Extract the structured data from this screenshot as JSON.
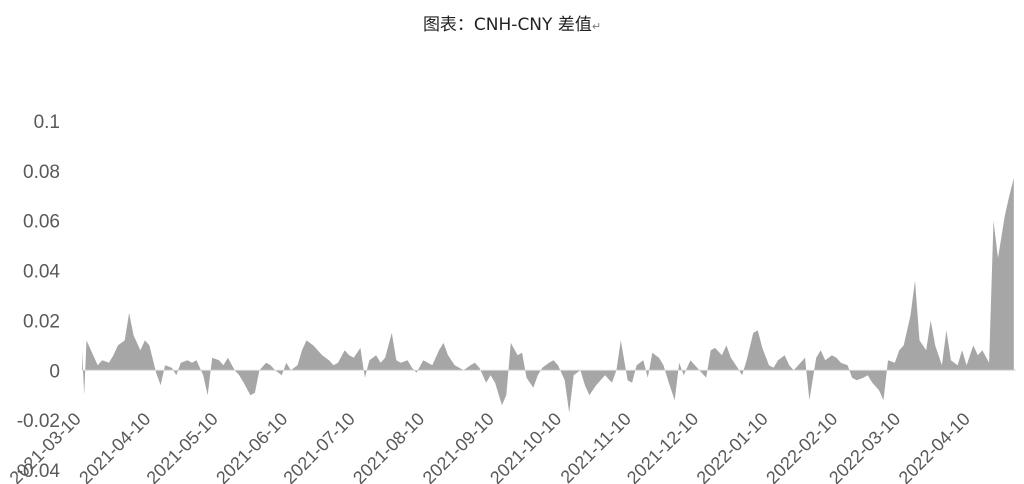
{
  "chart_data": {
    "type": "area",
    "title": "图表：CNH-CNY 差值",
    "title_mark": "↵",
    "xlabel": "",
    "ylabel": "",
    "ylim": [
      -0.04,
      0.1
    ],
    "y_ticks": [
      "0.1",
      "0.08",
      "0.06",
      "0.04",
      "0.02",
      "0",
      "-0.02",
      "-0.04"
    ],
    "x_range": [
      "2021-03-10",
      "2022-04-30"
    ],
    "x_ticks": [
      "2021-03-10",
      "2021-04-10",
      "2021-05-10",
      "2021-06-10",
      "2021-07-10",
      "2021-08-10",
      "2021-09-10",
      "2021-10-10",
      "2021-11-10",
      "2021-12-10",
      "2022-01-10",
      "2022-02-10",
      "2022-03-10",
      "2022-04-10"
    ],
    "grid": false,
    "legend": "none",
    "fill_color": "#A6A6A6",
    "series": [
      {
        "x": [
          "2021-03-10",
          "2021-03-11",
          "2021-03-12",
          "2021-03-15",
          "2021-03-17",
          "2021-03-19",
          "2021-03-22",
          "2021-03-24",
          "2021-03-26",
          "2021-03-29",
          "2021-03-31",
          "2021-04-02",
          "2021-04-05",
          "2021-04-07",
          "2021-04-09",
          "2021-04-12",
          "2021-04-14",
          "2021-04-16",
          "2021-04-19",
          "2021-04-21",
          "2021-04-23",
          "2021-04-26",
          "2021-04-28",
          "2021-04-30",
          "2021-05-03",
          "2021-05-05",
          "2021-05-07",
          "2021-05-10",
          "2021-05-12",
          "2021-05-14",
          "2021-05-17",
          "2021-05-19",
          "2021-05-21",
          "2021-05-24",
          "2021-05-26",
          "2021-05-28",
          "2021-05-31",
          "2021-06-02",
          "2021-06-04",
          "2021-06-07",
          "2021-06-09",
          "2021-06-11",
          "2021-06-14",
          "2021-06-16",
          "2021-06-18",
          "2021-06-21",
          "2021-06-23",
          "2021-06-25",
          "2021-06-28",
          "2021-06-30",
          "2021-07-02",
          "2021-07-05",
          "2021-07-07",
          "2021-07-09",
          "2021-07-12",
          "2021-07-14",
          "2021-07-16",
          "2021-07-19",
          "2021-07-21",
          "2021-07-23",
          "2021-07-26",
          "2021-07-28",
          "2021-07-30",
          "2021-08-02",
          "2021-08-04",
          "2021-08-06",
          "2021-08-09",
          "2021-08-11",
          "2021-08-13",
          "2021-08-16",
          "2021-08-18",
          "2021-08-20",
          "2021-08-23",
          "2021-08-25",
          "2021-08-27",
          "2021-08-30",
          "2021-09-01",
          "2021-09-03",
          "2021-09-06",
          "2021-09-08",
          "2021-09-10",
          "2021-09-13",
          "2021-09-15",
          "2021-09-17",
          "2021-09-20",
          "2021-09-22",
          "2021-09-24",
          "2021-09-27",
          "2021-09-29",
          "2021-10-01",
          "2021-10-04",
          "2021-10-06",
          "2021-10-08",
          "2021-10-11",
          "2021-10-13",
          "2021-10-15",
          "2021-10-18",
          "2021-10-20",
          "2021-10-22",
          "2021-10-25",
          "2021-10-27",
          "2021-10-29",
          "2021-11-01",
          "2021-11-03",
          "2021-11-05",
          "2021-11-08",
          "2021-11-10",
          "2021-11-12",
          "2021-11-15",
          "2021-11-17",
          "2021-11-19",
          "2021-11-22",
          "2021-11-24",
          "2021-11-26",
          "2021-11-29",
          "2021-12-01",
          "2021-12-03",
          "2021-12-06",
          "2021-12-08",
          "2021-12-10",
          "2021-12-13",
          "2021-12-15",
          "2021-12-17",
          "2021-12-20",
          "2021-12-22",
          "2021-12-24",
          "2021-12-27",
          "2021-12-29",
          "2021-12-31",
          "2022-01-03",
          "2022-01-05",
          "2022-01-07",
          "2022-01-10",
          "2022-01-12",
          "2022-01-14",
          "2022-01-17",
          "2022-01-19",
          "2022-01-21",
          "2022-01-24",
          "2022-01-26",
          "2022-01-28",
          "2022-01-31",
          "2022-02-02",
          "2022-02-04",
          "2022-02-07",
          "2022-02-09",
          "2022-02-11",
          "2022-02-14",
          "2022-02-16",
          "2022-02-18",
          "2022-02-21",
          "2022-02-23",
          "2022-02-25",
          "2022-02-28",
          "2022-03-02",
          "2022-03-04",
          "2022-03-07",
          "2022-03-09",
          "2022-03-11",
          "2022-03-14",
          "2022-03-16",
          "2022-03-18",
          "2022-03-21",
          "2022-03-23",
          "2022-03-25",
          "2022-03-28",
          "2022-03-30",
          "2022-04-01",
          "2022-04-04",
          "2022-04-06",
          "2022-04-08",
          "2022-04-11",
          "2022-04-13",
          "2022-04-15",
          "2022-04-18",
          "2022-04-20",
          "2022-04-22",
          "2022-04-25",
          "2022-04-27",
          "2022-04-29"
        ],
        "values": [
          0.008,
          -0.01,
          0.012,
          0.006,
          0.002,
          0.004,
          0.003,
          0.006,
          0.01,
          0.012,
          0.023,
          0.014,
          0.008,
          0.012,
          0.01,
          -0.001,
          -0.006,
          0.002,
          0.001,
          -0.002,
          0.003,
          0.004,
          0.003,
          0.004,
          -0.002,
          -0.01,
          0.005,
          0.004,
          0.002,
          0.005,
          0,
          -0.002,
          -0.005,
          -0.01,
          -0.009,
          0,
          0.003,
          0.002,
          0,
          -0.002,
          0.003,
          0,
          0.002,
          0.008,
          0.012,
          0.01,
          0.008,
          0.006,
          0.004,
          0.002,
          0.003,
          0.008,
          0.006,
          0.005,
          0.009,
          -0.003,
          0.004,
          0.006,
          0.003,
          0.005,
          0.015,
          0.004,
          0.003,
          0.004,
          0.001,
          -0.001,
          0.004,
          0.003,
          0.002,
          0.008,
          0.011,
          0.006,
          0.002,
          0.001,
          0,
          0.002,
          0.003,
          0.001,
          -0.005,
          -0.002,
          -0.005,
          -0.014,
          -0.01,
          0.011,
          0.006,
          0.007,
          -0.003,
          -0.007,
          -0.002,
          0.001,
          0.003,
          0.004,
          0.002,
          -0.004,
          -0.017,
          -0.002,
          0,
          -0.006,
          -0.01,
          -0.006,
          -0.004,
          -0.002,
          -0.005,
          0,
          0.012,
          -0.004,
          -0.005,
          0.002,
          0.004,
          -0.003,
          0.007,
          0.005,
          0.002,
          -0.004,
          -0.012,
          0.003,
          -0.002,
          0.004,
          0.002,
          0,
          -0.003,
          0.008,
          0.009,
          0.006,
          0.01,
          0.005,
          0.001,
          -0.002,
          0.004,
          0.015,
          0.016,
          0.009,
          0.002,
          0.001,
          0.004,
          0.006,
          0.002,
          0,
          0.003,
          0.005,
          -0.012,
          0.005,
          0.008,
          0.004,
          0.006,
          0.005,
          0.003,
          0.002,
          -0.003,
          -0.004,
          -0.003,
          -0.002,
          -0.005,
          -0.008,
          -0.012,
          0.004,
          0.003,
          0.008,
          0.01,
          0.022,
          0.036,
          0.012,
          0.008,
          0.02,
          0.01,
          0.002,
          0.016,
          0.004,
          0.002,
          0.008,
          0.002,
          0.01,
          0.006,
          0.008,
          0.003,
          0.06,
          0.045,
          0.062,
          0.07,
          0.077
        ]
      }
    ]
  }
}
